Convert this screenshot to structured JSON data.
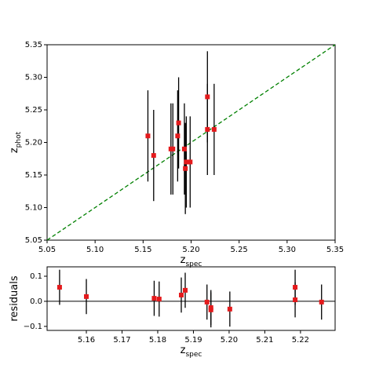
{
  "chart_data": [
    {
      "type": "scatter",
      "xlabel": "z",
      "xlabel_sub": "spec",
      "ylabel": "z",
      "ylabel_sub": "phot",
      "x": [
        5.155,
        5.161,
        5.179,
        5.181,
        5.186,
        5.187,
        5.193,
        5.194,
        5.195,
        5.199,
        5.217,
        5.217,
        5.224
      ],
      "values": [
        5.21,
        5.18,
        5.19,
        5.19,
        5.21,
        5.23,
        5.19,
        5.16,
        5.17,
        5.17,
        5.27,
        5.22,
        5.22
      ],
      "errors": [
        0.07,
        0.07,
        0.07,
        0.07,
        0.07,
        0.07,
        0.07,
        0.07,
        0.07,
        0.07,
        0.07,
        0.07,
        0.07
      ],
      "marker_color": "#e41a1c",
      "errorbar_color": "#000000",
      "reference_line": {
        "kind": "identity",
        "color": "#008000",
        "dashed": true
      },
      "xlim": [
        5.05,
        5.35
      ],
      "ylim": [
        5.05,
        5.35
      ],
      "xticks": [
        5.05,
        {
          "value": 5.1,
          "label": "5.10"
        },
        5.15,
        {
          "value": 5.2,
          "label": "5.20"
        },
        5.25,
        {
          "value": 5.3,
          "label": "5.30"
        },
        5.35
      ],
      "yticks": [
        5.05,
        {
          "value": 5.1,
          "label": "5.10"
        },
        5.15,
        {
          "value": 5.2,
          "label": "5.20"
        },
        5.25,
        {
          "value": 5.3,
          "label": "5.30"
        },
        5.35
      ]
    },
    {
      "type": "scatter",
      "xlabel": "z",
      "xlabel_sub": "spec",
      "ylabel": "residuals",
      "x": [
        5.1525,
        5.16,
        5.179,
        5.1804,
        5.1866,
        5.1877,
        5.1938,
        5.1949,
        5.1949,
        5.2002,
        5.2185,
        5.2185,
        5.2259
      ],
      "values": [
        0.056,
        0.019,
        0.012,
        0.009,
        0.025,
        0.044,
        -0.003,
        -0.025,
        -0.034,
        -0.031,
        0.056,
        0.006,
        -0.003
      ],
      "errors": [
        0.07,
        0.07,
        0.07,
        0.07,
        0.07,
        0.07,
        0.07,
        0.07,
        0.07,
        0.07,
        0.07,
        0.07,
        0.07
      ],
      "marker_color": "#e41a1c",
      "errorbar_color": "#000000",
      "reference_line": {
        "kind": "horizontal",
        "value": 0,
        "color": "#000000",
        "dashed": false
      },
      "xlim": [
        5.149,
        5.2297
      ],
      "ylim": [
        -0.116,
        0.1375
      ],
      "xticks": [
        5.16,
        5.17,
        5.18,
        5.19,
        {
          "value": 5.2,
          "label": "5.20"
        },
        5.21,
        5.22
      ],
      "yticks": [
        0.1,
        {
          "value": 0,
          "label": "0.0"
        },
        {
          "value": -0.1,
          "label": "−0.1"
        }
      ]
    }
  ]
}
